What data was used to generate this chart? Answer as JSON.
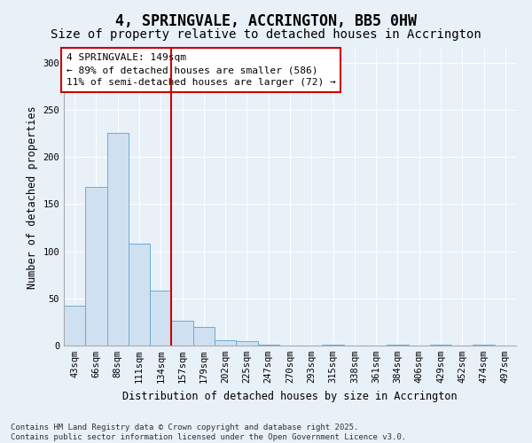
{
  "title": "4, SPRINGVALE, ACCRINGTON, BB5 0HW",
  "subtitle": "Size of property relative to detached houses in Accrington",
  "xlabel": "Distribution of detached houses by size in Accrington",
  "ylabel": "Number of detached properties",
  "categories": [
    "43sqm",
    "66sqm",
    "88sqm",
    "111sqm",
    "134sqm",
    "157sqm",
    "179sqm",
    "202sqm",
    "225sqm",
    "247sqm",
    "270sqm",
    "293sqm",
    "315sqm",
    "338sqm",
    "361sqm",
    "384sqm",
    "406sqm",
    "429sqm",
    "452sqm",
    "474sqm",
    "497sqm"
  ],
  "values": [
    42,
    168,
    226,
    108,
    58,
    26,
    20,
    6,
    5,
    1,
    0,
    0,
    1,
    0,
    0,
    1,
    0,
    1,
    0,
    1,
    0
  ],
  "bar_color": "#cfe0f0",
  "bar_edge_color": "#6aaed6",
  "vline_x_index": 4.5,
  "vline_color": "#cc0000",
  "annotation_text": "4 SPRINGVALE: 149sqm\n← 89% of detached houses are smaller (586)\n11% of semi-detached houses are larger (72) →",
  "annotation_box_color": "#ffffff",
  "annotation_box_edge": "#cc0000",
  "ylim": [
    0,
    315
  ],
  "yticks": [
    0,
    50,
    100,
    150,
    200,
    250,
    300
  ],
  "background_color": "#e8f0f8",
  "footer_line1": "Contains HM Land Registry data © Crown copyright and database right 2025.",
  "footer_line2": "Contains public sector information licensed under the Open Government Licence v3.0.",
  "title_fontsize": 12,
  "subtitle_fontsize": 10,
  "axis_label_fontsize": 8.5,
  "tick_fontsize": 7.5,
  "annotation_fontsize": 8,
  "footer_fontsize": 6.5
}
